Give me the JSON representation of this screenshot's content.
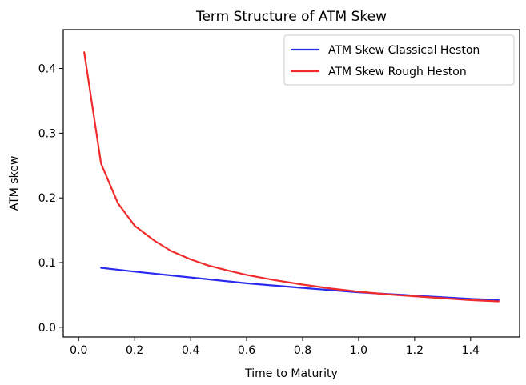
{
  "chart_data": {
    "type": "line",
    "title": "Term Structure of ATM Skew",
    "xlabel": "Time to Maturity",
    "ylabel": "ATM skew",
    "xlim": [
      -0.055,
      1.575
    ],
    "ylim": [
      -0.015,
      0.46
    ],
    "xticks": [
      0.0,
      0.2,
      0.4,
      0.6,
      0.8,
      1.0,
      1.2,
      1.4
    ],
    "xtick_labels": [
      "0.0",
      "0.2",
      "0.4",
      "0.6",
      "0.8",
      "1.0",
      "1.2",
      "1.4"
    ],
    "yticks": [
      0.0,
      0.1,
      0.2,
      0.3,
      0.4
    ],
    "ytick_labels": [
      "0.0",
      "0.1",
      "0.2",
      "0.3",
      "0.4"
    ],
    "grid": false,
    "legend_position": "top-right",
    "series": [
      {
        "name": "ATM Skew Classical Heston",
        "color": "#2b2bf0",
        "x": [
          0.08,
          0.2,
          0.4,
          0.6,
          0.8,
          1.0,
          1.2,
          1.4,
          1.5
        ],
        "y": [
          0.092,
          0.086,
          0.077,
          0.068,
          0.061,
          0.054,
          0.049,
          0.044,
          0.042
        ]
      },
      {
        "name": "ATM Skew Rough Heston",
        "color": "#f02b2b",
        "x": [
          0.02,
          0.08,
          0.14,
          0.2,
          0.27,
          0.33,
          0.4,
          0.46,
          0.53,
          0.6,
          0.7,
          0.8,
          0.9,
          1.0,
          1.1,
          1.2,
          1.3,
          1.4,
          1.5
        ],
        "y": [
          0.425,
          0.253,
          0.192,
          0.157,
          0.134,
          0.118,
          0.105,
          0.096,
          0.088,
          0.081,
          0.073,
          0.066,
          0.06,
          0.055,
          0.051,
          0.048,
          0.045,
          0.042,
          0.04
        ]
      }
    ]
  }
}
